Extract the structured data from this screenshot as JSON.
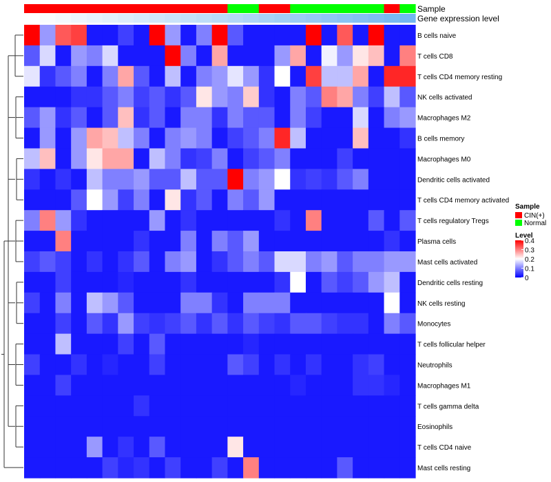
{
  "chart_data": {
    "type": "heatmap",
    "annotation_labels": {
      "sample": "Sample",
      "expression": "Gene expression level"
    },
    "sample_groups": [
      "CIN",
      "CIN",
      "CIN",
      "CIN",
      "CIN",
      "CIN",
      "CIN",
      "CIN",
      "CIN",
      "CIN",
      "CIN",
      "CIN",
      "CIN",
      "N",
      "N",
      "CIN",
      "CIN",
      "N",
      "N",
      "N",
      "N",
      "N",
      "N",
      "CIN",
      "N"
    ],
    "expression_annotation": [
      0.0,
      0.04,
      0.08,
      0.12,
      0.16,
      0.2,
      0.24,
      0.28,
      0.32,
      0.36,
      0.4,
      0.44,
      0.48,
      0.52,
      0.56,
      0.6,
      0.64,
      0.68,
      0.72,
      0.76,
      0.8,
      0.84,
      0.88,
      0.92,
      0.96
    ],
    "rows": [
      "B cells naive",
      "T cells CD8",
      "T cells CD4 memory resting",
      "NK cells activated",
      "Macrophages M2",
      "B cells memory",
      "Macrophages M0",
      "Dendritic cells activated",
      "T cells CD4 memory activated",
      "T cells regulatory  Tregs",
      "Plasma cells",
      "Mast cells activated",
      "Dendritic cells resting",
      "NK cells resting",
      "Monocytes",
      "T cells follicular helper",
      "Neutrophils",
      "Macrophages M1",
      "T cells gamma delta",
      "Eosinophils",
      "T cells CD4 naive",
      "Mast cells resting"
    ],
    "values": [
      [
        0.4,
        0.12,
        0.33,
        0.35,
        0.02,
        0.02,
        0.05,
        0.02,
        0.4,
        0.12,
        0.02,
        0.1,
        0.4,
        0.07,
        0.02,
        0.02,
        0.02,
        0.02,
        0.4,
        0.02,
        0.33,
        0.02,
        0.4,
        0.02,
        0.02
      ],
      [
        0.07,
        0.17,
        0.02,
        0.12,
        0.1,
        0.17,
        0.02,
        0.02,
        0.02,
        0.4,
        0.1,
        0.02,
        0.27,
        0.02,
        0.02,
        0.02,
        0.12,
        0.27,
        0.02,
        0.19,
        0.12,
        0.22,
        0.25,
        0.02,
        0.3
      ],
      [
        0.18,
        0.04,
        0.07,
        0.1,
        0.02,
        0.1,
        0.27,
        0.07,
        0.02,
        0.15,
        0.02,
        0.1,
        0.12,
        0.18,
        0.12,
        0.04,
        0.2,
        0.02,
        0.35,
        0.15,
        0.15,
        0.27,
        0.02,
        0.37,
        0.37
      ],
      [
        0.02,
        0.02,
        0.02,
        0.04,
        0.04,
        0.07,
        0.1,
        0.05,
        0.07,
        0.04,
        0.07,
        0.22,
        0.12,
        0.1,
        0.24,
        0.04,
        0.02,
        0.1,
        0.07,
        0.3,
        0.27,
        0.1,
        0.05,
        0.15,
        0.07
      ],
      [
        0.07,
        0.12,
        0.04,
        0.07,
        0.02,
        0.07,
        0.25,
        0.04,
        0.07,
        0.02,
        0.1,
        0.1,
        0.04,
        0.1,
        0.07,
        0.07,
        0.02,
        0.1,
        0.05,
        0.02,
        0.02,
        0.17,
        0.02,
        0.1,
        0.12
      ],
      [
        0.02,
        0.12,
        0.02,
        0.12,
        0.27,
        0.25,
        0.15,
        0.1,
        0.02,
        0.1,
        0.12,
        0.1,
        0.02,
        0.05,
        0.07,
        0.1,
        0.37,
        0.15,
        0.02,
        0.02,
        0.02,
        0.25,
        0.02,
        0.02,
        0.04
      ],
      [
        0.15,
        0.25,
        0.02,
        0.12,
        0.22,
        0.27,
        0.27,
        0.02,
        0.15,
        0.1,
        0.04,
        0.05,
        0.1,
        0.02,
        0.05,
        0.07,
        0.1,
        0.02,
        0.02,
        0.02,
        0.05,
        0.02,
        0.02,
        0.02,
        0.02
      ],
      [
        0.04,
        0.02,
        0.04,
        0.02,
        0.15,
        0.1,
        0.1,
        0.12,
        0.07,
        0.07,
        0.15,
        0.07,
        0.07,
        0.4,
        0.1,
        0.12,
        0.2,
        0.04,
        0.05,
        0.04,
        0.07,
        0.1,
        0.02,
        0.02,
        0.02
      ],
      [
        0.02,
        0.02,
        0.02,
        0.07,
        0.2,
        0.12,
        0.05,
        0.1,
        0.02,
        0.22,
        0.04,
        0.07,
        0.02,
        0.1,
        0.07,
        0.12,
        0.02,
        0.02,
        0.02,
        0.02,
        0.02,
        0.02,
        0.02,
        0.02,
        0.02
      ],
      [
        0.1,
        0.3,
        0.12,
        0.04,
        0.02,
        0.02,
        0.02,
        0.02,
        0.12,
        0.02,
        0.04,
        0.02,
        0.02,
        0.02,
        0.02,
        0.02,
        0.04,
        0.02,
        0.3,
        0.02,
        0.02,
        0.02,
        0.07,
        0.02,
        0.07
      ],
      [
        0.02,
        0.02,
        0.3,
        0.02,
        0.02,
        0.02,
        0.02,
        0.04,
        0.02,
        0.02,
        0.1,
        0.02,
        0.1,
        0.07,
        0.12,
        0.02,
        0.02,
        0.02,
        0.02,
        0.02,
        0.02,
        0.02,
        0.02,
        0.04,
        0.02
      ],
      [
        0.05,
        0.07,
        0.05,
        0.02,
        0.04,
        0.02,
        0.04,
        0.07,
        0.02,
        0.1,
        0.12,
        0.02,
        0.04,
        0.07,
        0.1,
        0.07,
        0.17,
        0.17,
        0.1,
        0.12,
        0.07,
        0.1,
        0.1,
        0.12,
        0.12
      ],
      [
        0.02,
        0.02,
        0.05,
        0.02,
        0.02,
        0.02,
        0.03,
        0.02,
        0.02,
        0.02,
        0.04,
        0.02,
        0.02,
        0.02,
        0.02,
        0.02,
        0.04,
        0.2,
        0.02,
        0.07,
        0.05,
        0.07,
        0.12,
        0.15,
        0.02
      ],
      [
        0.05,
        0.02,
        0.1,
        0.02,
        0.15,
        0.12,
        0.07,
        0.02,
        0.02,
        0.02,
        0.1,
        0.1,
        0.04,
        0.02,
        0.1,
        0.1,
        0.1,
        0.02,
        0.02,
        0.02,
        0.02,
        0.02,
        0.02,
        0.2,
        0.02
      ],
      [
        0.02,
        0.02,
        0.05,
        0.02,
        0.07,
        0.04,
        0.12,
        0.05,
        0.04,
        0.05,
        0.07,
        0.04,
        0.07,
        0.04,
        0.07,
        0.05,
        0.04,
        0.07,
        0.07,
        0.05,
        0.04,
        0.04,
        0.02,
        0.1,
        0.07
      ],
      [
        0.02,
        0.02,
        0.15,
        0.02,
        0.02,
        0.02,
        0.05,
        0.02,
        0.07,
        0.02,
        0.02,
        0.02,
        0.02,
        0.02,
        0.03,
        0.02,
        0.02,
        0.02,
        0.02,
        0.02,
        0.02,
        0.02,
        0.02,
        0.02,
        0.02
      ],
      [
        0.05,
        0.02,
        0.02,
        0.04,
        0.02,
        0.03,
        0.02,
        0.02,
        0.05,
        0.02,
        0.02,
        0.02,
        0.02,
        0.07,
        0.05,
        0.02,
        0.04,
        0.02,
        0.04,
        0.02,
        0.02,
        0.04,
        0.05,
        0.02,
        0.02
      ],
      [
        0.02,
        0.02,
        0.05,
        0.02,
        0.02,
        0.02,
        0.02,
        0.02,
        0.02,
        0.02,
        0.02,
        0.02,
        0.02,
        0.02,
        0.02,
        0.02,
        0.02,
        0.03,
        0.02,
        0.02,
        0.02,
        0.04,
        0.04,
        0.03,
        0.02
      ],
      [
        0.02,
        0.02,
        0.02,
        0.02,
        0.02,
        0.02,
        0.02,
        0.04,
        0.02,
        0.02,
        0.02,
        0.02,
        0.02,
        0.02,
        0.02,
        0.02,
        0.02,
        0.02,
        0.02,
        0.02,
        0.02,
        0.02,
        0.02,
        0.02,
        0.02
      ],
      [
        0.02,
        0.02,
        0.02,
        0.02,
        0.02,
        0.02,
        0.02,
        0.02,
        0.02,
        0.02,
        0.02,
        0.02,
        0.02,
        0.02,
        0.02,
        0.02,
        0.02,
        0.02,
        0.02,
        0.02,
        0.02,
        0.02,
        0.02,
        0.02,
        0.02
      ],
      [
        0.02,
        0.02,
        0.02,
        0.02,
        0.12,
        0.02,
        0.04,
        0.02,
        0.07,
        0.02,
        0.02,
        0.02,
        0.02,
        0.22,
        0.02,
        0.02,
        0.02,
        0.02,
        0.02,
        0.02,
        0.02,
        0.02,
        0.02,
        0.02,
        0.02
      ],
      [
        0.02,
        0.02,
        0.02,
        0.02,
        0.02,
        0.05,
        0.03,
        0.04,
        0.02,
        0.05,
        0.02,
        0.02,
        0.05,
        0.02,
        0.3,
        0.02,
        0.02,
        0.02,
        0.02,
        0.02,
        0.07,
        0.02,
        0.02,
        0.02,
        0.02
      ]
    ],
    "legend": {
      "sample_title": "Sample",
      "sample_items": [
        {
          "key": "CIN",
          "label": "CIN(+)",
          "color": "#ff0000"
        },
        {
          "key": "N",
          "label": "Normal",
          "color": "#00ff00"
        }
      ],
      "level_title": "Level",
      "level_ticks": [
        "0.4",
        "0.3",
        "0.2",
        "0.1",
        "0"
      ],
      "level_tick_values": [
        0.4,
        0.3,
        0.2,
        0.1,
        0.0
      ]
    },
    "colors": {
      "low": "#0000ff",
      "mid": "#ffffff",
      "high": "#ff0000",
      "expr_low": "#ffffff",
      "expr_high": "#6cb4f0"
    },
    "zlim": [
      0,
      0.4
    ],
    "zmid": 0.2
  }
}
